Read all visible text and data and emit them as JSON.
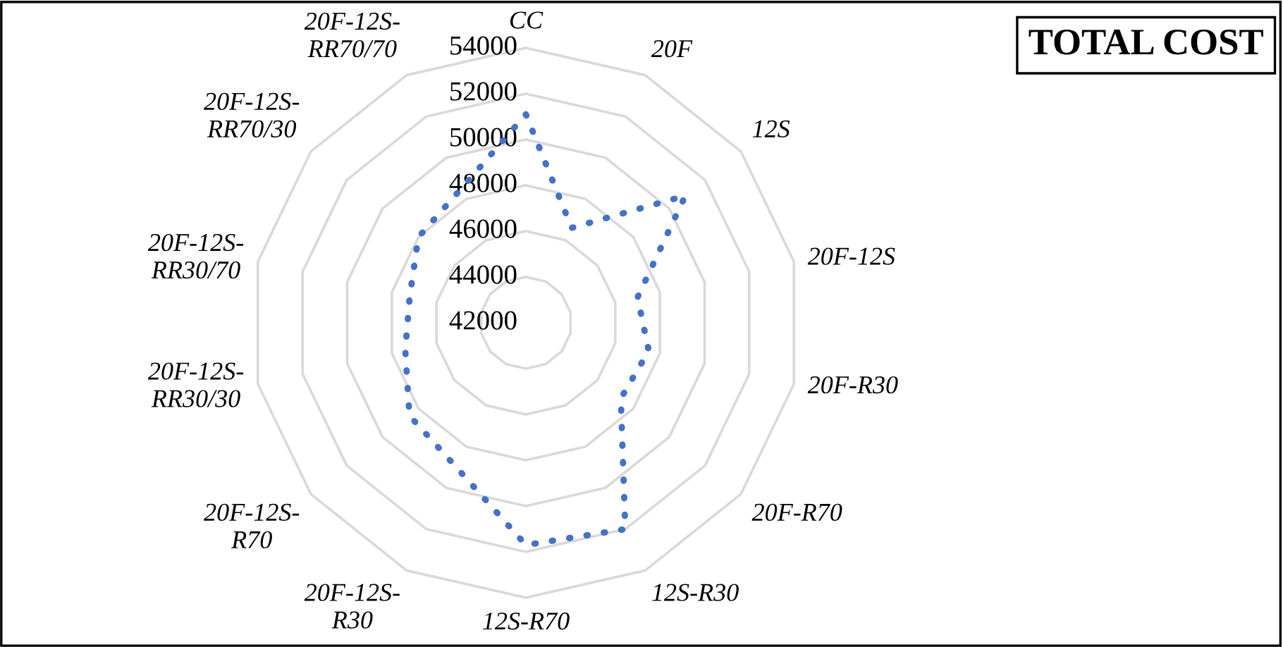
{
  "chart_data": {
    "type": "radar",
    "title": "TOTAL COST",
    "categories": [
      "CC",
      "20F",
      "12S",
      "20F-12S",
      "20F-R30",
      "20F-R70",
      "12S-R30",
      "12S-R70",
      "20F-12S-R30",
      "20F-12S-R70",
      "20F-12S-RR30/30",
      "20F-12S-RR30/70",
      "20F-12S-RR70/30",
      "20F-12S-RR70/70"
    ],
    "series": [
      {
        "color": "#4472c4",
        "values": [
          51100,
          46600,
          50900,
          47000,
          47500,
          47300,
          52000,
          51700,
          49000,
          48500,
          47400,
          47200,
          48000,
          48500
        ]
      }
    ],
    "ylim": [
      42000,
      54000
    ],
    "yticks": [
      42000,
      44000,
      46000,
      48000,
      50000,
      52000,
      54000
    ],
    "grid": true,
    "line_style": "dotted",
    "marker": "none"
  }
}
